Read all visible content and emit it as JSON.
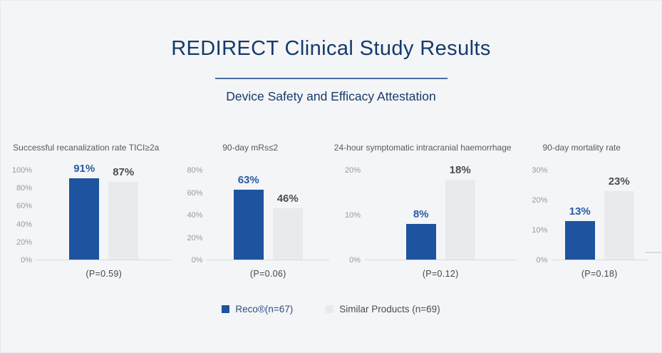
{
  "header": {
    "title": "REDIRECT Clinical Study Results",
    "subtitle": "Device Safety and Efficacy Attestation"
  },
  "colors": {
    "background": "#f4f5f7",
    "title_navy": "#163a6b",
    "divider": "#4a6da1",
    "bar_blue": "#1d539f",
    "bar_gray": "#e9eaeb",
    "value_blue": "#2a5ba6",
    "value_dark": "#4d4d4d",
    "tick_gray": "#9a9a9a",
    "axis_line": "#d9d9d9",
    "legend_reco_text": "#2e4e7e",
    "legend_similar_text": "#4d4d4d"
  },
  "chart_data": [
    {
      "type": "bar",
      "title": "Successful recanalization rate TICI≥2a",
      "categories": [
        "Reco®(n=67)",
        "Similar Products (n=69)"
      ],
      "series": [
        {
          "name": "Reco®(n=67)",
          "value": 91,
          "label": "91%"
        },
        {
          "name": "Similar Products (n=69)",
          "value": 87,
          "label": "87%"
        }
      ],
      "p_value": "(P=0.59)",
      "xlabel": "",
      "ylabel": "",
      "ylim": [
        0,
        100
      ],
      "ticks": [
        "100%",
        "80%",
        "60%",
        "40%",
        "20%",
        "0%"
      ],
      "grid": false,
      "legend_position": "bottom"
    },
    {
      "type": "bar",
      "title": "90-day mRs≤2",
      "categories": [
        "Reco®(n=67)",
        "Similar Products (n=69)"
      ],
      "series": [
        {
          "name": "Reco®(n=67)",
          "value": 63,
          "label": "63%"
        },
        {
          "name": "Similar Products (n=69)",
          "value": 46,
          "label": "46%"
        }
      ],
      "p_value": "(P=0.06)",
      "xlabel": "",
      "ylabel": "",
      "ylim": [
        0,
        80
      ],
      "ticks": [
        "80%",
        "60%",
        "40%",
        "20%",
        "0%"
      ],
      "grid": false,
      "legend_position": "bottom"
    },
    {
      "type": "bar",
      "title": "24-hour symptomatic intracranial haemorrhage",
      "categories": [
        "Reco®(n=67)",
        "Similar Products (n=69)"
      ],
      "series": [
        {
          "name": "Reco®(n=67)",
          "value": 8,
          "label": "8%"
        },
        {
          "name": "Similar Products (n=69)",
          "value": 18,
          "label": "18%"
        }
      ],
      "p_value": "(P=0.12)",
      "xlabel": "",
      "ylabel": "",
      "ylim": [
        0,
        20
      ],
      "ticks": [
        "20%",
        "10%",
        "0%"
      ],
      "grid": false,
      "legend_position": "bottom"
    },
    {
      "type": "bar",
      "title": "90-day mortality rate",
      "categories": [
        "Reco®(n=67)",
        "Similar Products (n=69)"
      ],
      "series": [
        {
          "name": "Reco®(n=67)",
          "value": 13,
          "label": "13%"
        },
        {
          "name": "Similar Products (n=69)",
          "value": 23,
          "label": "23%"
        }
      ],
      "p_value": "(P=0.18)",
      "xlabel": "",
      "ylabel": "",
      "ylim": [
        0,
        30
      ],
      "ticks": [
        "30%",
        "20%",
        "10%",
        "0%"
      ],
      "grid": false,
      "legend_position": "bottom"
    }
  ],
  "legend": {
    "items": [
      {
        "label": "Reco®(n=67)",
        "swatch": "blue"
      },
      {
        "label": "Similar Products (n=69)",
        "swatch": "gray"
      }
    ]
  }
}
